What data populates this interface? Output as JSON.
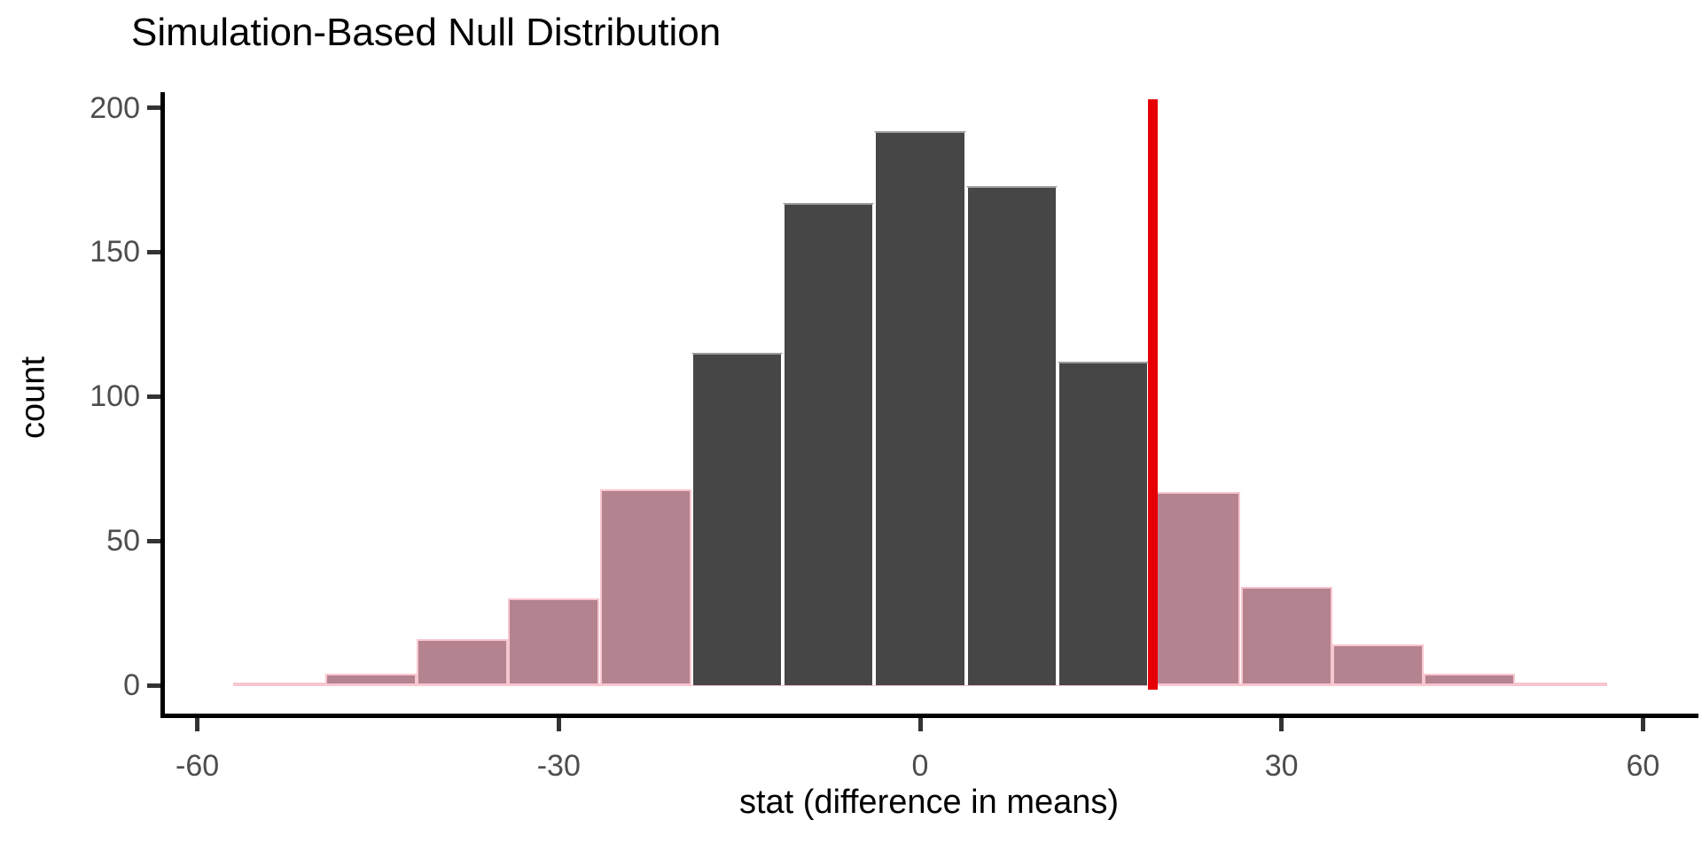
{
  "chart_data": {
    "type": "bar",
    "subtype": "histogram",
    "title": "Simulation-Based Null Distribution",
    "xlabel": "stat (difference in means)",
    "ylabel": "count",
    "x_tick_values": [
      -60,
      -30,
      0,
      30,
      60
    ],
    "x_tick_labels": [
      "-60",
      "-30",
      "0",
      "30",
      "60"
    ],
    "y_tick_values": [
      0,
      50,
      100,
      150,
      200
    ],
    "y_tick_labels": [
      "0",
      "50",
      "100",
      "150",
      "200"
    ],
    "xlim": [
      -63,
      64
    ],
    "ylim": [
      0,
      215
    ],
    "grid": false,
    "legend": false,
    "bin_start": -57,
    "bin_width": 7.6,
    "categories": [
      "-57 to -49.4",
      "-49.4 to -41.8",
      "-41.8 to -34.2",
      "-34.2 to -26.6",
      "-26.6 to -19",
      "-19 to -11.4",
      "-11.4 to -3.8",
      "-3.8 to 3.8",
      "3.8 to 11.4",
      "11.4 to 19",
      "19 to 26.6",
      "26.6 to 34.2",
      "34.2 to 41.8",
      "41.8 to 49.4",
      "49.4 to 57"
    ],
    "values": [
      1,
      4,
      16,
      30,
      68,
      115,
      167,
      192,
      173,
      112,
      67,
      34,
      14,
      4,
      1
    ],
    "bin_regions": [
      "tail",
      "tail",
      "tail",
      "tail",
      "tail",
      "null",
      "null",
      "null",
      "null",
      "null",
      "tail",
      "tail",
      "tail",
      "tail",
      "tail"
    ],
    "observed_stat": 19.3,
    "observed_stat_line": "vertical red line at x = 19.3 spanning full plot height",
    "colors": {
      "null_bar_fill": "#464646",
      "tail_bar_fill": "#b5838f",
      "tail_bar_border": "#f8c6d0",
      "observed_line": "#e60005",
      "axis_text": "#4d4d4d",
      "axis_line": "#000000",
      "background": "#ffffff"
    }
  }
}
